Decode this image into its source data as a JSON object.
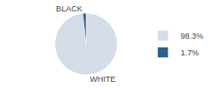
{
  "chart_data": {
    "type": "pie",
    "categories": [
      "WHITE",
      "BLACK"
    ],
    "values": [
      98.3,
      1.7
    ],
    "value_labels": [
      "98.3%",
      "1.7%"
    ],
    "colors": [
      "#d4dce8",
      "#2d5f8a"
    ],
    "legend": "right"
  }
}
